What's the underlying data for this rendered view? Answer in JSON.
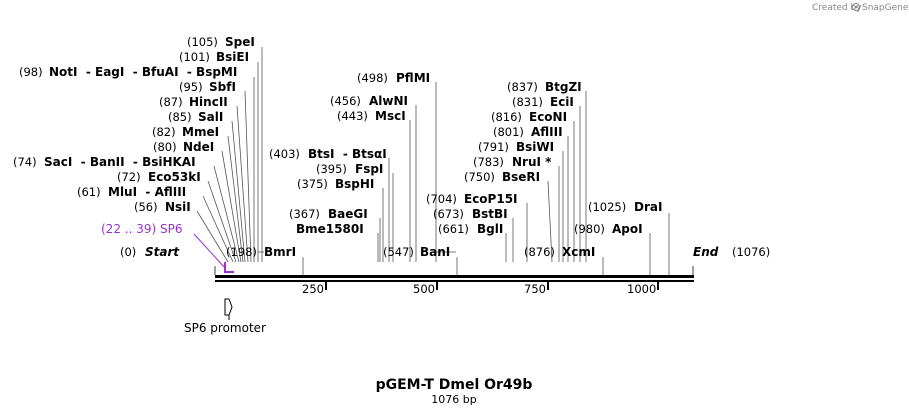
{
  "credit": {
    "text": "Created by",
    "brand": "SnapGene"
  },
  "map": {
    "title": "pGEM-T Dmel Or49b",
    "length_label": "1076 bp",
    "start_label": "Start",
    "start_pos": "(0)",
    "end_label": "End",
    "end_pos": "(1076)"
  },
  "primer": {
    "pos": "(22 .. 39)",
    "name": "SP6"
  },
  "feature": {
    "name": "SP6 promoter"
  },
  "ticks": [
    "250",
    "500",
    "750",
    "1000"
  ],
  "enzymes": [
    {
      "pos": "(105)",
      "name": "SpeI"
    },
    {
      "pos": "(101)",
      "name": "BsiEI"
    },
    {
      "pos": "(98)",
      "name": "NotI  - EagI  - BfuAI  - BspMI"
    },
    {
      "pos": "(95)",
      "name": "SbfI"
    },
    {
      "pos": "(87)",
      "name": "HincII"
    },
    {
      "pos": "(85)",
      "name": "SalI"
    },
    {
      "pos": "(82)",
      "name": "MmeI"
    },
    {
      "pos": "(80)",
      "name": "NdeI"
    },
    {
      "pos": "(74)",
      "name": "SacI  - BanII  - BsiHKAI"
    },
    {
      "pos": "(72)",
      "name": "Eco53kI"
    },
    {
      "pos": "(61)",
      "name": "MluI  - AflIII"
    },
    {
      "pos": "(56)",
      "name": "NsiI"
    },
    {
      "pos": "(198)",
      "name": "BmrI"
    },
    {
      "pos": "(498)",
      "name": "PflMI"
    },
    {
      "pos": "(456)",
      "name": "AlwNI"
    },
    {
      "pos": "(443)",
      "name": "MscI"
    },
    {
      "pos": "(403)",
      "name": "BtsI  - BtsαI"
    },
    {
      "pos": "(395)",
      "name": "FspI"
    },
    {
      "pos": "(375)",
      "name": "BspHI"
    },
    {
      "pos": "(367)",
      "name": "BaeGI"
    },
    {
      "pos": "",
      "name": "Bme1580I"
    },
    {
      "pos": "(547)",
      "name": "BanI"
    },
    {
      "pos": "(837)",
      "name": "BtgZI"
    },
    {
      "pos": "(831)",
      "name": "EciI"
    },
    {
      "pos": "(816)",
      "name": "EcoNI"
    },
    {
      "pos": "(801)",
      "name": "AflIII"
    },
    {
      "pos": "(791)",
      "name": "BsiWI"
    },
    {
      "pos": "(783)",
      "name": "NruI *"
    },
    {
      "pos": "(750)",
      "name": "BseRI"
    },
    {
      "pos": "(704)",
      "name": "EcoP15I"
    },
    {
      "pos": "(673)",
      "name": "BstBI"
    },
    {
      "pos": "(661)",
      "name": "BglI"
    },
    {
      "pos": "(876)",
      "name": "XcmI"
    },
    {
      "pos": "(1025)",
      "name": "DraI"
    },
    {
      "pos": "(980)",
      "name": "ApoI"
    }
  ]
}
